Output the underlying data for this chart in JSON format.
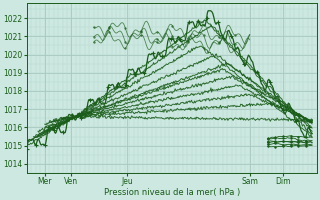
{
  "xlabel": "Pression niveau de la mer( hPa )",
  "ylim": [
    1013.5,
    1022.8
  ],
  "xlim": [
    0,
    130
  ],
  "yticks": [
    1014,
    1015,
    1016,
    1017,
    1018,
    1019,
    1020,
    1021,
    1022
  ],
  "xtick_positions": [
    8,
    20,
    45,
    100,
    115
  ],
  "xtick_labels": [
    "Mer",
    "Ven",
    "Jeu",
    "Sam",
    "Dim"
  ],
  "bg_color": "#cce8e0",
  "line_color": "#1a5c1a",
  "grid_color_minor": "#b8d8d0",
  "grid_color_major": "#a8c8c0"
}
